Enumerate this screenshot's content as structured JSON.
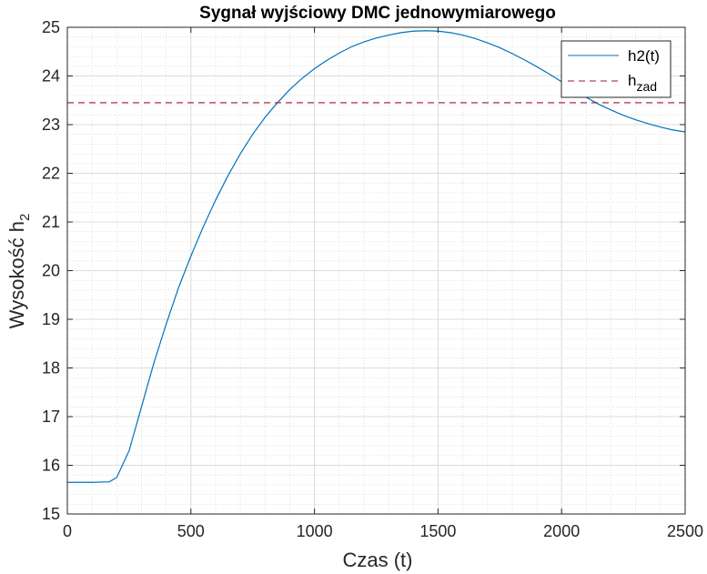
{
  "chart_data": {
    "type": "line",
    "title": "Sygnał wyjściowy DMC jednowymiarowego",
    "xlabel": "Czas (t)",
    "ylabel_main": "Wysokość h",
    "ylabel_sub": "2",
    "xlim": [
      0,
      2500
    ],
    "ylim": [
      15,
      25
    ],
    "x_ticks": [
      0,
      500,
      1000,
      1500,
      2000,
      2500
    ],
    "y_ticks": [
      15,
      16,
      17,
      18,
      19,
      20,
      21,
      22,
      23,
      24,
      25
    ],
    "grid": true,
    "minor_grid": true,
    "legend_position": "top-right",
    "series": [
      {
        "name": "h2(t)",
        "style": "solid",
        "color": "#0072BD",
        "x": [
          0,
          100,
          170,
          200,
          250,
          300,
          350,
          400,
          450,
          500,
          550,
          600,
          650,
          700,
          750,
          800,
          850,
          900,
          950,
          1000,
          1050,
          1100,
          1150,
          1200,
          1250,
          1300,
          1350,
          1400,
          1450,
          1500,
          1550,
          1600,
          1650,
          1700,
          1750,
          1800,
          1850,
          1900,
          1950,
          2000,
          2050,
          2100,
          2150,
          2200,
          2250,
          2300,
          2350,
          2400,
          2450,
          2500
        ],
        "values": [
          15.65,
          15.65,
          15.66,
          15.75,
          16.3,
          17.2,
          18.1,
          18.9,
          19.65,
          20.3,
          20.9,
          21.45,
          21.95,
          22.4,
          22.8,
          23.15,
          23.45,
          23.72,
          23.95,
          24.15,
          24.32,
          24.47,
          24.6,
          24.7,
          24.78,
          24.84,
          24.89,
          24.92,
          24.93,
          24.92,
          24.89,
          24.84,
          24.77,
          24.68,
          24.58,
          24.46,
          24.33,
          24.19,
          24.04,
          23.88,
          23.72,
          23.56,
          23.42,
          23.3,
          23.19,
          23.1,
          23.02,
          22.95,
          22.89,
          22.85
        ]
      },
      {
        "name": "h",
        "name_sub": "zad",
        "style": "dashed",
        "color": "#A2142F",
        "x": [
          0,
          2500
        ],
        "values": [
          23.45,
          23.45
        ]
      }
    ]
  }
}
